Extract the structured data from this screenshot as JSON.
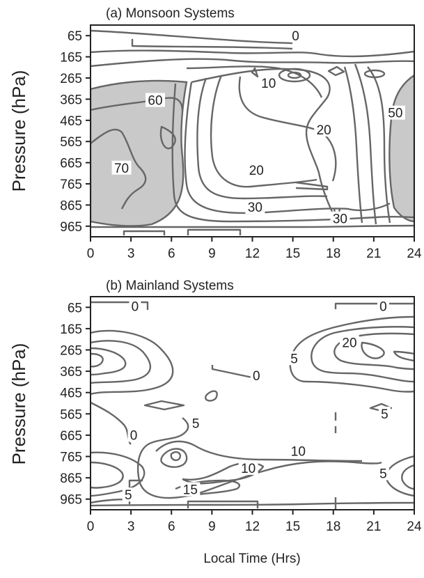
{
  "figure": {
    "xlabel": "Local Time (Hrs)"
  },
  "chart_data": [
    {
      "type": "contour",
      "title": "(a)  Monsoon Systems",
      "xlabel": "",
      "ylabel": "Pressure (hPa)",
      "x_ticks": [
        0,
        3,
        6,
        9,
        12,
        15,
        18,
        21,
        24
      ],
      "y_ticks": [
        65,
        165,
        265,
        365,
        465,
        565,
        665,
        765,
        865,
        965
      ],
      "xlim": [
        0,
        24
      ],
      "ylim": [
        1015,
        15
      ],
      "y_inverted": true,
      "grid": false,
      "shaded_regions": [
        {
          "desc": "values >= 60",
          "x_range": [
            0,
            6
          ]
        },
        {
          "desc": "values >= 50",
          "x_range": [
            21.5,
            24
          ]
        }
      ],
      "contour_labels": [
        {
          "text": "0",
          "x": 15.2,
          "pressure": 80
        },
        {
          "text": "10",
          "x": 13.2,
          "pressure": 305
        },
        {
          "text": "60",
          "x": 4.8,
          "pressure": 385
        },
        {
          "text": "50",
          "x": 22.6,
          "pressure": 445
        },
        {
          "text": "20",
          "x": 17.3,
          "pressure": 525
        },
        {
          "text": "70",
          "x": 2.3,
          "pressure": 705
        },
        {
          "text": "20",
          "x": 12.3,
          "pressure": 715
        },
        {
          "text": "30",
          "x": 12.2,
          "pressure": 890
        },
        {
          "text": "30",
          "x": 18.5,
          "pressure": 945
        }
      ]
    },
    {
      "type": "contour",
      "title": "(b)  Mainland  Systems",
      "xlabel": "",
      "ylabel": "Pressure (hPa)",
      "x_ticks": [
        0,
        3,
        6,
        9,
        12,
        15,
        18,
        21,
        24
      ],
      "y_ticks": [
        65,
        165,
        265,
        365,
        465,
        565,
        665,
        765,
        865,
        965
      ],
      "xlim": [
        0,
        24
      ],
      "ylim": [
        1015,
        15
      ],
      "y_inverted": true,
      "grid": false,
      "contour_labels": [
        {
          "text": "0",
          "x": 3.3,
          "pressure": 75
        },
        {
          "text": "0",
          "x": 21.7,
          "pressure": 75
        },
        {
          "text": "20",
          "x": 19.2,
          "pressure": 245
        },
        {
          "text": "5",
          "x": 15.1,
          "pressure": 320
        },
        {
          "text": "0",
          "x": 12.3,
          "pressure": 400
        },
        {
          "text": "5",
          "x": 21.8,
          "pressure": 580
        },
        {
          "text": "5",
          "x": 7.8,
          "pressure": 625
        },
        {
          "text": "0",
          "x": 3.2,
          "pressure": 680
        },
        {
          "text": "10",
          "x": 15.4,
          "pressure": 755
        },
        {
          "text": "10",
          "x": 11.7,
          "pressure": 835
        },
        {
          "text": "5",
          "x": 21.7,
          "pressure": 860
        },
        {
          "text": "15",
          "x": 7.4,
          "pressure": 935
        },
        {
          "text": "5",
          "x": 2.8,
          "pressure": 960
        }
      ]
    }
  ]
}
